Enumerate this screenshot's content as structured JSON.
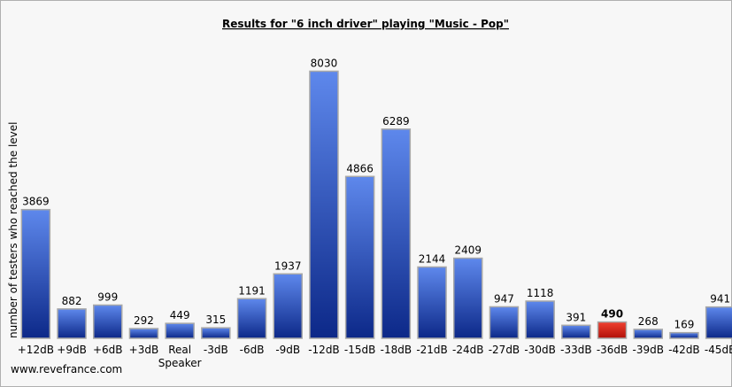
{
  "chart_data": {
    "type": "bar",
    "title": "Results for \"6 inch driver\" playing \"Music - Pop\"",
    "y_label": "number of testers who reached the level",
    "categories": [
      "+12dB",
      "+9dB",
      "+6dB",
      "+3dB",
      "Real Speaker",
      "-3dB",
      "-6dB",
      "-9dB",
      "-12dB",
      "-15dB",
      "-18dB",
      "-21dB",
      "-24dB",
      "-27dB",
      "-30dB",
      "-33dB",
      "-36dB",
      "-39dB",
      "-42dB",
      "-45dB"
    ],
    "values": [
      3869,
      882,
      999,
      292,
      449,
      315,
      1191,
      1937,
      8030,
      4866,
      6289,
      2144,
      2409,
      947,
      1118,
      391,
      490,
      268,
      169,
      941
    ],
    "color": "#2a52c4",
    "highlight_color": "#e02a1c",
    "highlight_index": 16,
    "ylim": [
      0,
      9000
    ],
    "watermark": "www.revefrance.com"
  }
}
